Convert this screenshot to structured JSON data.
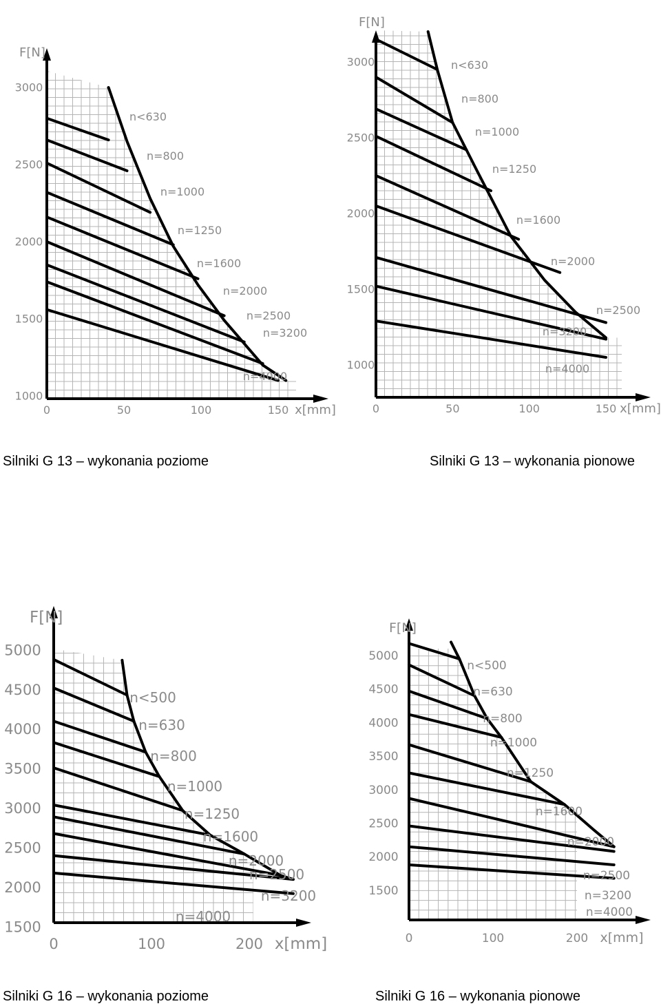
{
  "chart_data": [
    {
      "type": "line",
      "caption": "Silniki G 13 – wykonania poziome",
      "ylabel": "F[N]",
      "xlabel": "x[mm]",
      "xlim": [
        0,
        150
      ],
      "ylim": [
        1000,
        3000
      ],
      "x_ticks": [
        "0",
        "50",
        "100",
        "150"
      ],
      "y_ticks": [
        "1000",
        "1500",
        "2000",
        "2500",
        "3000"
      ],
      "grid": true,
      "limit_curve": [
        [
          40,
          3000
        ],
        [
          52,
          2650
        ],
        [
          67,
          2280
        ],
        [
          82,
          1970
        ],
        [
          98,
          1720
        ],
        [
          115,
          1490
        ],
        [
          140,
          1200
        ],
        [
          155,
          1100
        ]
      ],
      "series": [
        {
          "name": "n<630",
          "x": [
            0,
            40
          ],
          "y": [
            2800,
            2660
          ]
        },
        {
          "name": "n=800",
          "x": [
            0,
            52
          ],
          "y": [
            2660,
            2460
          ]
        },
        {
          "name": "n=1000",
          "x": [
            0,
            67
          ],
          "y": [
            2510,
            2190
          ]
        },
        {
          "name": "n=1250",
          "x": [
            0,
            82
          ],
          "y": [
            2320,
            1980
          ]
        },
        {
          "name": "n=1600",
          "x": [
            0,
            98
          ],
          "y": [
            2160,
            1760
          ]
        },
        {
          "name": "n=2000",
          "x": [
            0,
            115
          ],
          "y": [
            2000,
            1520
          ]
        },
        {
          "name": "n=2500",
          "x": [
            0,
            128
          ],
          "y": [
            1850,
            1350
          ]
        },
        {
          "name": "n=3200",
          "x": [
            0,
            140
          ],
          "y": [
            1740,
            1210
          ]
        },
        {
          "name": "n=4000",
          "x": [
            0,
            150
          ],
          "y": [
            1560,
            1100
          ]
        }
      ]
    },
    {
      "type": "line",
      "caption": "Silniki G 13 – wykonania pionowe",
      "ylabel": "F[N]",
      "xlabel": "x[mm]",
      "xlim": [
        0,
        150
      ],
      "ylim": [
        1000,
        3000
      ],
      "x_ticks": [
        "0",
        "50",
        "100",
        "150"
      ],
      "y_ticks": [
        "1000",
        "1500",
        "2000",
        "2500",
        "3000"
      ],
      "grid": true,
      "limit_curve": [
        [
          34,
          3200
        ],
        [
          40,
          2950
        ],
        [
          50,
          2600
        ],
        [
          66,
          2280
        ],
        [
          88,
          1850
        ],
        [
          110,
          1560
        ],
        [
          130,
          1350
        ],
        [
          150,
          1180
        ]
      ],
      "series": [
        {
          "name": "n<630",
          "x": [
            0,
            40
          ],
          "y": [
            3150,
            2950
          ]
        },
        {
          "name": "n=800",
          "x": [
            0,
            50
          ],
          "y": [
            2900,
            2600
          ]
        },
        {
          "name": "n=1000",
          "x": [
            0,
            59
          ],
          "y": [
            2690,
            2420
          ]
        },
        {
          "name": "n=1250",
          "x": [
            0,
            75
          ],
          "y": [
            2510,
            2150
          ]
        },
        {
          "name": "n=1600",
          "x": [
            0,
            93
          ],
          "y": [
            2250,
            1830
          ]
        },
        {
          "name": "n=2000",
          "x": [
            0,
            120
          ],
          "y": [
            2050,
            1610
          ]
        },
        {
          "name": "n=2500",
          "x": [
            0,
            150
          ],
          "y": [
            1710,
            1280
          ]
        },
        {
          "name": "n=3200",
          "x": [
            0,
            150
          ],
          "y": [
            1520,
            1170
          ]
        },
        {
          "name": "n=4000",
          "x": [
            0,
            150
          ],
          "y": [
            1290,
            1050
          ]
        }
      ]
    },
    {
      "type": "line",
      "caption": "Silniki G 16 – wykonania poziome",
      "ylabel": "F[N]",
      "xlabel": "x[mm]",
      "xlim": [
        0,
        200
      ],
      "ylim": [
        1500,
        5000
      ],
      "x_ticks": [
        "0",
        "100",
        "200"
      ],
      "y_ticks": [
        "1500",
        "2000",
        "2500",
        "3000",
        "3500",
        "4000",
        "4500",
        "5000"
      ],
      "grid": true,
      "limit_curve": [
        [
          70,
          4870
        ],
        [
          75,
          4430
        ],
        [
          82,
          4100
        ],
        [
          94,
          3710
        ],
        [
          108,
          3400
        ],
        [
          132,
          2970
        ],
        [
          160,
          2660
        ],
        [
          195,
          2420
        ],
        [
          232,
          2150
        ],
        [
          245,
          2100
        ]
      ],
      "series": [
        {
          "name": "n<500",
          "x": [
            0,
            75
          ],
          "y": [
            4880,
            4430
          ]
        },
        {
          "name": "n=630",
          "x": [
            0,
            82
          ],
          "y": [
            4520,
            4100
          ]
        },
        {
          "name": "n=800",
          "x": [
            0,
            94
          ],
          "y": [
            4100,
            3710
          ]
        },
        {
          "name": "n=1000",
          "x": [
            0,
            108
          ],
          "y": [
            3830,
            3400
          ]
        },
        {
          "name": "n=1250",
          "x": [
            0,
            132
          ],
          "y": [
            3510,
            2970
          ]
        },
        {
          "name": "n=1600",
          "x": [
            0,
            160
          ],
          "y": [
            3040,
            2660
          ]
        },
        {
          "name": "n=2000",
          "x": [
            0,
            195
          ],
          "y": [
            2890,
            2420
          ]
        },
        {
          "name": "n=2500",
          "x": [
            0,
            232
          ],
          "y": [
            2680,
            2150
          ]
        },
        {
          "name": "n=3200",
          "x": [
            0,
            245
          ],
          "y": [
            2400,
            2100
          ]
        },
        {
          "name": "n=4000",
          "x": [
            0,
            245
          ],
          "y": [
            2180,
            1920
          ]
        }
      ]
    },
    {
      "type": "line",
      "caption": "Silniki G 16 – wykonania pionowe",
      "ylabel": "F[N]",
      "xlabel": "x[mm]",
      "xlim": [
        0,
        200
      ],
      "ylim": [
        1500,
        5000
      ],
      "x_ticks": [
        "0",
        "100",
        "200"
      ],
      "y_ticks": [
        "1500",
        "2000",
        "2500",
        "3000",
        "3500",
        "4000",
        "4500",
        "5000"
      ],
      "grid": true,
      "limit_curve": [
        [
          50,
          5200
        ],
        [
          60,
          4950
        ],
        [
          78,
          4400
        ],
        [
          93,
          4060
        ],
        [
          110,
          3780
        ],
        [
          145,
          3120
        ],
        [
          185,
          2780
        ],
        [
          220,
          2400
        ],
        [
          244,
          2150
        ]
      ],
      "series": [
        {
          "name": "n<500",
          "x": [
            0,
            60
          ],
          "y": [
            5180,
            4950
          ]
        },
        {
          "name": "n=630",
          "x": [
            0,
            78
          ],
          "y": [
            4860,
            4400
          ]
        },
        {
          "name": "n=800",
          "x": [
            0,
            93
          ],
          "y": [
            4470,
            4060
          ]
        },
        {
          "name": "n=1000",
          "x": [
            0,
            110
          ],
          "y": [
            4120,
            3780
          ]
        },
        {
          "name": "n=1250",
          "x": [
            0,
            145
          ],
          "y": [
            3670,
            3120
          ]
        },
        {
          "name": "n=1600",
          "x": [
            0,
            185
          ],
          "y": [
            3250,
            2780
          ]
        },
        {
          "name": "n=2000",
          "x": [
            0,
            244
          ],
          "y": [
            2870,
            2150
          ]
        },
        {
          "name": "n=2500",
          "x": [
            0,
            244
          ],
          "y": [
            2460,
            2080
          ]
        },
        {
          "name": "n=3200",
          "x": [
            0,
            244
          ],
          "y": [
            2150,
            1880
          ]
        },
        {
          "name": "n=4000",
          "x": [
            0,
            244
          ],
          "y": [
            1880,
            1680
          ]
        }
      ]
    }
  ]
}
